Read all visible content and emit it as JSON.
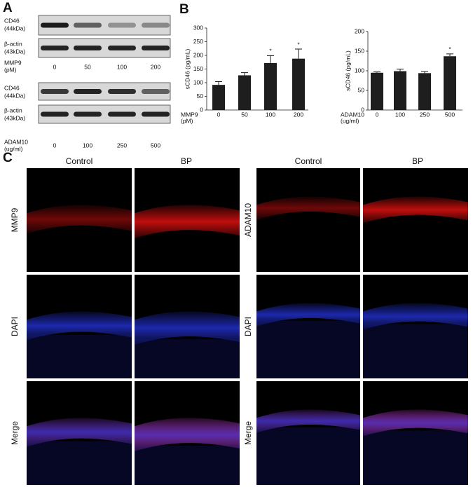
{
  "panel_a": {
    "label": "A",
    "blots": [
      {
        "rows": [
          {
            "protein": "CD46",
            "weight": "(44kDa)"
          },
          {
            "protein": "β-actin",
            "weight": "(43kDa)"
          }
        ],
        "treatment": "MMP9",
        "unit": "(pM)",
        "lanes": [
          "0",
          "50",
          "100",
          "200"
        ]
      },
      {
        "rows": [
          {
            "protein": "CD46",
            "weight": "(44kDa)"
          },
          {
            "protein": "β-actin",
            "weight": "(43kDa)"
          }
        ],
        "treatment": "ADAM10",
        "unit": "(ug/ml)",
        "lanes": [
          "0",
          "100",
          "250",
          "500"
        ]
      }
    ]
  },
  "panel_b": {
    "label": "B"
  },
  "chart_data": [
    {
      "type": "bar",
      "y_label": "sCD46 (pg/mL)",
      "x_label": [
        "MMP9",
        "(pM)"
      ],
      "categories": [
        "0",
        "50",
        "100",
        "200"
      ],
      "values": [
        92,
        127,
        172,
        188
      ],
      "errors": [
        12,
        10,
        27,
        35
      ],
      "significance": [
        null,
        null,
        "*",
        "*"
      ],
      "color": "#1e1e1e",
      "ylim": [
        0,
        300
      ],
      "yticks": [
        0,
        50,
        100,
        150,
        200,
        250,
        300
      ]
    },
    {
      "type": "bar",
      "y_label": "sCD46 (pg/mL)",
      "x_label": [
        "ADAM10",
        "(ug/ml)"
      ],
      "categories": [
        "0",
        "100",
        "250",
        "500"
      ],
      "values": [
        95,
        99,
        94,
        137
      ],
      "errors": [
        2,
        5,
        4,
        6
      ],
      "significance": [
        null,
        null,
        null,
        "*"
      ],
      "color": "#1e1e1e",
      "ylim": [
        0,
        200
      ],
      "yticks": [
        0,
        50,
        100,
        150,
        200
      ]
    }
  ],
  "panel_c": {
    "label": "C",
    "groups": [
      {
        "columns": [
          "Control",
          "BP"
        ],
        "rows": [
          "MMP9",
          "DAPI",
          "Merge"
        ]
      },
      {
        "columns": [
          "Control",
          "BP"
        ],
        "rows": [
          "ADAM10",
          "DAPI",
          "Merge"
        ]
      }
    ]
  }
}
